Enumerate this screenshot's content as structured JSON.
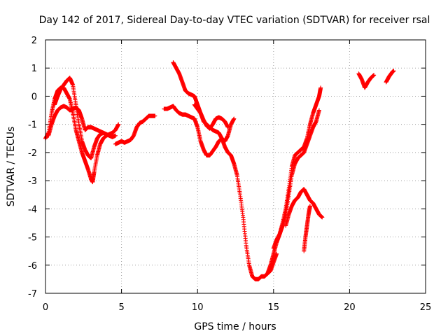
{
  "chart_data": {
    "type": "scatter",
    "title": "Day 142 of 2017, Sidereal Day-to-day VTEC variation (SDTVAR) for receiver rsal",
    "xlabel": "GPS time / hours",
    "ylabel": "SDTVAR / TECUs",
    "xlim": [
      0,
      25
    ],
    "ylim": [
      -7,
      2
    ],
    "xticks": [
      "0",
      "5",
      "10",
      "15",
      "20",
      "25"
    ],
    "yticks": [
      "2",
      "1",
      "0",
      "-1",
      "-2",
      "-3",
      "-4",
      "-5",
      "-6",
      "-7"
    ],
    "grid": true,
    "marker": "plus",
    "color": "#ff0000",
    "series": [
      {
        "x": [
          0.0,
          0.2,
          0.4,
          0.6,
          0.8,
          1.0,
          1.2,
          1.4,
          1.6,
          1.8,
          2.0,
          2.2,
          2.4,
          2.6,
          2.8,
          3.0,
          3.1,
          3.2,
          3.4,
          3.6,
          3.8,
          4.0,
          4.2,
          4.4,
          4.6,
          4.8
        ],
        "y": [
          -1.5,
          -1.3,
          -0.6,
          -0.1,
          0.2,
          0.3,
          0.3,
          0.1,
          -0.1,
          -0.6,
          -1.2,
          -1.6,
          -2.0,
          -2.3,
          -2.6,
          -2.95,
          -3.05,
          -2.7,
          -2.1,
          -1.7,
          -1.5,
          -1.4,
          -1.35,
          -1.3,
          -1.2,
          -1.0
        ]
      },
      {
        "x": [
          0.6,
          0.8,
          1.0,
          1.2,
          1.4,
          1.6,
          1.8,
          2.0,
          2.2,
          2.4,
          2.6,
          2.8,
          3.0,
          3.2,
          3.4,
          3.6,
          3.8,
          4.0,
          4.2,
          4.4,
          4.6
        ],
        "y": [
          -0.3,
          0.0,
          0.25,
          0.4,
          0.55,
          0.65,
          0.4,
          -0.3,
          -1.0,
          -1.6,
          -1.9,
          -2.1,
          -2.2,
          -1.8,
          -1.5,
          -1.35,
          -1.3,
          -1.35,
          -1.4,
          -1.45,
          -1.4
        ]
      },
      {
        "x": [
          0.2,
          0.4,
          0.6,
          0.8,
          1.0,
          1.2,
          1.4,
          1.6,
          1.8,
          2.0,
          2.2,
          2.4,
          2.6,
          2.8,
          3.0,
          3.2,
          3.4,
          3.6,
          3.8
        ],
        "y": [
          -1.4,
          -1.0,
          -0.7,
          -0.5,
          -0.4,
          -0.35,
          -0.4,
          -0.5,
          -0.45,
          -0.4,
          -0.5,
          -0.8,
          -1.2,
          -1.1,
          -1.1,
          -1.15,
          -1.2,
          -1.25,
          -1.3
        ]
      },
      {
        "x": [
          4.6,
          4.8,
          5.0,
          5.2,
          5.4,
          5.6,
          5.8,
          6.0,
          6.2,
          6.4,
          6.6,
          6.8,
          7.0,
          7.2
        ],
        "y": [
          -1.7,
          -1.65,
          -1.6,
          -1.65,
          -1.6,
          -1.55,
          -1.4,
          -1.1,
          -0.95,
          -0.9,
          -0.8,
          -0.7,
          -0.7,
          -0.7
        ]
      },
      {
        "x": [
          8.4,
          8.6,
          8.8,
          9.0,
          9.2,
          9.4,
          9.6,
          9.8,
          10.0,
          10.2,
          10.4,
          10.6,
          10.8,
          11.0,
          11.2,
          11.4,
          11.6,
          11.8,
          12.0,
          12.2,
          12.4,
          12.6,
          12.8,
          13.0,
          13.2,
          13.4,
          13.6,
          13.8,
          14.0,
          14.2,
          14.4,
          14.6,
          14.8,
          15.0,
          15.2
        ],
        "y": [
          1.2,
          1.0,
          0.8,
          0.5,
          0.2,
          0.1,
          0.05,
          0.0,
          -0.3,
          -0.6,
          -0.9,
          -1.0,
          -1.1,
          -1.2,
          -1.25,
          -1.3,
          -1.5,
          -1.8,
          -2.0,
          -2.1,
          -2.4,
          -2.8,
          -3.5,
          -4.3,
          -5.3,
          -6.0,
          -6.4,
          -6.5,
          -6.5,
          -6.4,
          -6.4,
          -6.3,
          -6.2,
          -5.9,
          -5.6
        ]
      },
      {
        "x": [
          7.8,
          8.0,
          8.2,
          8.4,
          8.6,
          8.8,
          9.0,
          9.2,
          9.4,
          9.6,
          9.8,
          10.0,
          10.2,
          10.4,
          10.6,
          10.8,
          11.0,
          11.2,
          11.4,
          11.6,
          11.8,
          12.0,
          12.2,
          12.4
        ],
        "y": [
          -0.45,
          -0.45,
          -0.4,
          -0.35,
          -0.5,
          -0.6,
          -0.65,
          -0.65,
          -0.7,
          -0.75,
          -0.8,
          -1.1,
          -1.6,
          -1.9,
          -2.1,
          -2.1,
          -1.95,
          -1.8,
          -1.6,
          -1.5,
          -1.6,
          -1.4,
          -1.0,
          -0.8
        ]
      },
      {
        "x": [
          9.8,
          10.0,
          10.2,
          10.4,
          10.6,
          10.8,
          11.0,
          11.2,
          11.4,
          11.6,
          11.8,
          12.0
        ],
        "y": [
          -0.3,
          -0.45,
          -0.6,
          -0.85,
          -1.05,
          -1.15,
          -1.0,
          -0.8,
          -0.75,
          -0.8,
          -0.9,
          -1.1
        ]
      },
      {
        "x": [
          14.6,
          14.8,
          15.0,
          15.2,
          15.4,
          15.6,
          15.8,
          16.0,
          16.2,
          16.4,
          16.6,
          16.8,
          17.0,
          17.2,
          17.4,
          17.6,
          17.8,
          18.0,
          18.1
        ],
        "y": [
          -6.3,
          -6.0,
          -5.6,
          -5.2,
          -4.9,
          -4.5,
          -4.0,
          -3.3,
          -2.5,
          -2.1,
          -2.0,
          -1.9,
          -1.8,
          -1.5,
          -1.0,
          -0.6,
          -0.3,
          0.0,
          0.3
        ]
      },
      {
        "x": [
          15.0,
          15.2,
          15.4,
          15.6,
          15.8,
          16.0,
          16.2,
          16.4,
          16.6,
          16.8,
          17.0,
          17.2,
          17.4,
          17.6,
          17.8,
          18.0
        ],
        "y": [
          -5.4,
          -5.1,
          -4.9,
          -4.6,
          -4.2,
          -3.5,
          -2.8,
          -2.4,
          -2.2,
          -2.1,
          -2.0,
          -1.7,
          -1.4,
          -1.1,
          -0.9,
          -0.5
        ]
      },
      {
        "x": [
          15.8,
          16.0,
          16.2,
          16.4,
          16.6,
          16.8,
          17.0,
          17.2,
          17.4,
          17.6,
          17.8,
          18.0,
          18.2
        ],
        "y": [
          -4.6,
          -4.2,
          -3.9,
          -3.7,
          -3.6,
          -3.4,
          -3.3,
          -3.5,
          -3.7,
          -3.8,
          -4.0,
          -4.2,
          -4.3
        ]
      },
      {
        "x": [
          17.0,
          17.1,
          17.2,
          17.3,
          17.4
        ],
        "y": [
          -5.5,
          -5.0,
          -4.6,
          -4.2,
          -3.9
        ]
      },
      {
        "x": [
          20.6,
          20.8,
          21.0,
          21.2,
          21.4,
          21.6
        ],
        "y": [
          0.8,
          0.6,
          0.3,
          0.5,
          0.65,
          0.75
        ]
      },
      {
        "x": [
          22.4,
          22.6,
          22.8,
          22.9
        ],
        "y": [
          0.5,
          0.7,
          0.85,
          0.9
        ]
      }
    ]
  }
}
